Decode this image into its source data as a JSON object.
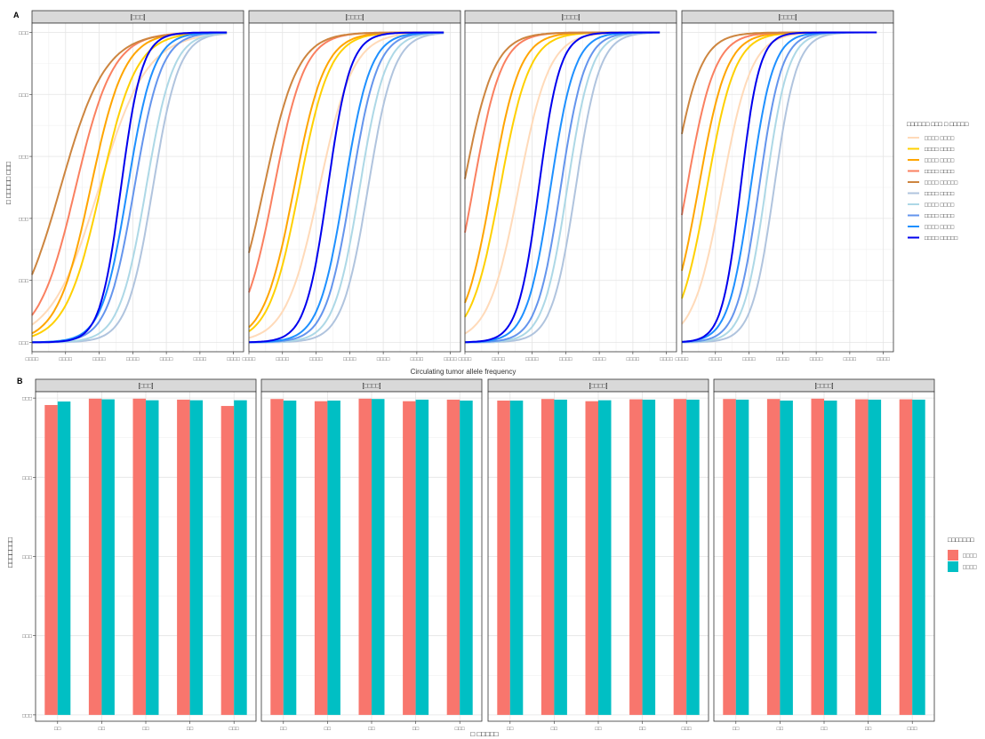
{
  "panel_a": {
    "tag": "A",
    "xlabel": "Circulating tumor allele frequency",
    "facets": [
      "[□□□]",
      "[□□□□]",
      "[□□□□]",
      "[□□□□]"
    ],
    "y_ticks": [
      "□□□",
      "□□□",
      "□□□",
      "□□□",
      "□□□",
      "□□□"
    ],
    "x_ticks": [
      "□□□□",
      "□□□□",
      "□□□□",
      "□□□□",
      "□□□□",
      "□□□□",
      "□□□□"
    ],
    "ylabel": "□ □□□□□ □□□",
    "legend_title": "□□□□□□ □□□ □ □□□□□",
    "legend_items": [
      "□□□□ □□□□",
      "□□□□ □□□□",
      "□□□□ □□□□",
      "□□□□ □□□□",
      "□□□□ □□□□□",
      "□□□□ □□□□",
      "□□□□ □□□□",
      "□□□□ □□□□",
      "□□□□ □□□□",
      "□□□□ □□□□□"
    ]
  },
  "panel_b": {
    "tag": "B",
    "xlabel": "□ □□□□□",
    "ylabel": "□□□□□□□",
    "facets": [
      "[□□□]",
      "[□□□□]",
      "[□□□□]",
      "[□□□□]"
    ],
    "x_ticks": [
      "□□",
      "□□",
      "□□",
      "□□",
      "□□□"
    ],
    "y_ticks": [
      "□□□",
      "□□□",
      "□□□",
      "□□□",
      "□□□"
    ],
    "legend_title": "□□□□□□□",
    "legend_items": [
      "□□□□",
      "□□□□"
    ]
  },
  "chart_data": [
    {
      "type": "line",
      "panel": "A",
      "xlim": [
        0,
        6.3
      ],
      "ylim": [
        -0.03,
        1.03
      ],
      "grid": true,
      "legend_position": "right",
      "colors": [
        "#FFDAB9",
        "#FFD000",
        "#FFA500",
        "#FA8060",
        "#CD853F",
        "#B0C4DE",
        "#ADD8E6",
        "#6495ED",
        "#1E90FF",
        "#0000EE"
      ],
      "facets": [
        {
          "midpoints": [
            2.0,
            2.05,
            1.75,
            1.3,
            0.85,
            3.6,
            3.4,
            3.05,
            2.85,
            2.65
          ],
          "slopes": [
            1.4,
            1.9,
            2.0,
            1.8,
            1.5,
            2.6,
            2.5,
            2.5,
            2.6,
            3.2
          ]
        },
        {
          "midpoints": [
            2.1,
            1.5,
            1.35,
            0.75,
            0.45,
            3.55,
            3.3,
            3.05,
            2.85,
            2.35
          ],
          "slopes": [
            2.0,
            2.2,
            2.2,
            2.2,
            2.0,
            2.6,
            2.6,
            2.6,
            2.6,
            3.0
          ]
        },
        {
          "midpoints": [
            1.6,
            1.05,
            0.8,
            0.25,
            -0.05,
            3.3,
            3.05,
            2.85,
            2.55,
            2.2
          ],
          "slopes": [
            2.2,
            2.3,
            2.4,
            2.4,
            2.2,
            2.8,
            2.8,
            2.8,
            2.8,
            3.2
          ]
        },
        {
          "midpoints": [
            1.2,
            0.75,
            0.5,
            0.15,
            -0.3,
            2.75,
            2.5,
            2.3,
            2.05,
            1.75
          ],
          "slopes": [
            2.3,
            2.4,
            2.4,
            2.4,
            2.4,
            3.0,
            3.0,
            3.0,
            3.0,
            3.6
          ]
        }
      ]
    },
    {
      "type": "bar",
      "panel": "B",
      "ylim": [
        -0.02,
        1.02
      ],
      "grid": true,
      "legend_position": "right",
      "series_colors": [
        "#F8766D",
        "#00BFC4"
      ],
      "facets": [
        {
          "series": [
            {
              "values": [
                0.978,
                0.998,
                0.998,
                0.995,
                0.975
              ]
            },
            {
              "values": [
                0.989,
                0.996,
                0.993,
                0.993,
                0.993
              ]
            }
          ]
        },
        {
          "series": [
            {
              "values": [
                0.997,
                0.99,
                0.998,
                0.99,
                0.995
              ]
            },
            {
              "values": [
                0.992,
                0.992,
                0.997,
                0.995,
                0.992
              ]
            }
          ]
        },
        {
          "series": [
            {
              "values": [
                0.992,
                0.997,
                0.99,
                0.996,
                0.997
              ]
            },
            {
              "values": [
                0.992,
                0.995,
                0.993,
                0.995,
                0.995
              ]
            }
          ]
        },
        {
          "series": [
            {
              "values": [
                0.997,
                0.997,
                0.998,
                0.996,
                0.996
              ]
            },
            {
              "values": [
                0.995,
                0.992,
                0.992,
                0.995,
                0.995
              ]
            }
          ]
        }
      ]
    }
  ]
}
